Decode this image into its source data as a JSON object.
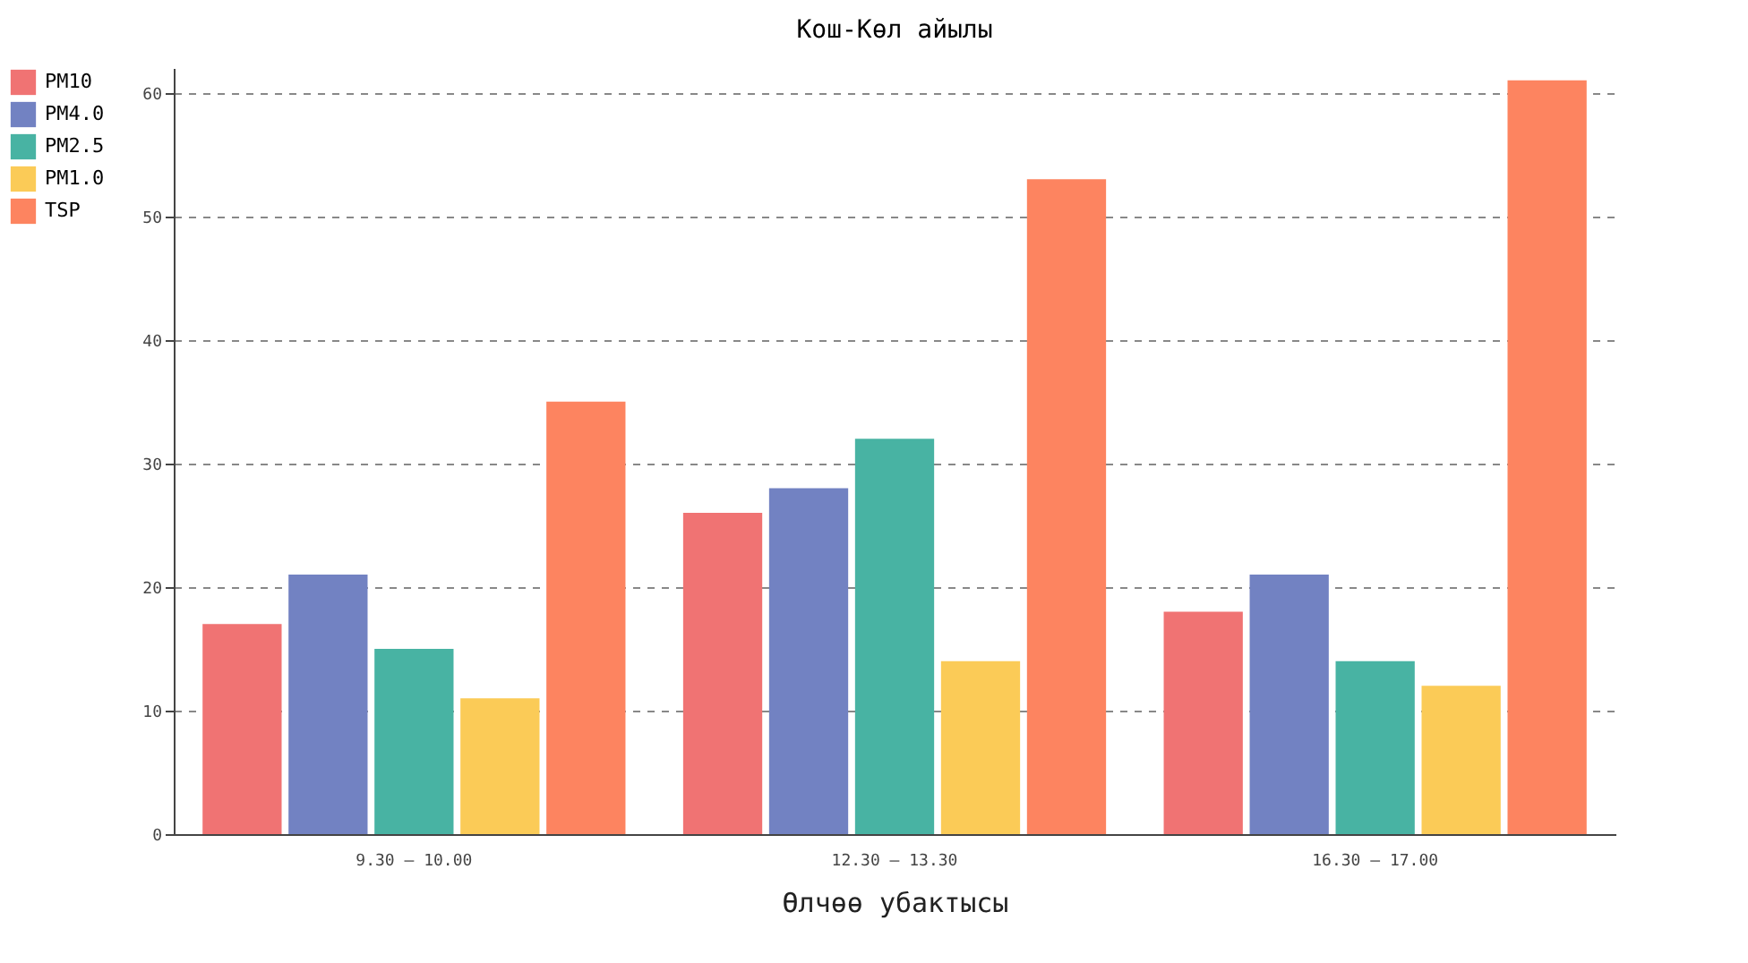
{
  "chart_data": {
    "type": "bar",
    "title": "Кош-Көл айылы",
    "xlabel": "Өлчөө убактысы",
    "categories": [
      "9.30 – 10.00",
      "12.30 – 13.30",
      "16.30 – 17.00"
    ],
    "series": [
      {
        "name": "PM10",
        "color": "#f07373",
        "values": [
          17,
          26,
          18
        ]
      },
      {
        "name": "PM4.0",
        "color": "#7282c2",
        "values": [
          21,
          28,
          21
        ]
      },
      {
        "name": "PM2.5",
        "color": "#48b3a3",
        "values": [
          15,
          32,
          14
        ]
      },
      {
        "name": "PM1.0",
        "color": "#fbcb57",
        "values": [
          11,
          14,
          12
        ]
      },
      {
        "name": "TSP",
        "color": "#fd8460",
        "values": [
          35,
          53,
          61
        ]
      }
    ],
    "ylim": [
      0,
      62
    ],
    "yticks": [
      0,
      10,
      20,
      30,
      40,
      50,
      60
    ],
    "grid": "y",
    "legend": "top left"
  }
}
